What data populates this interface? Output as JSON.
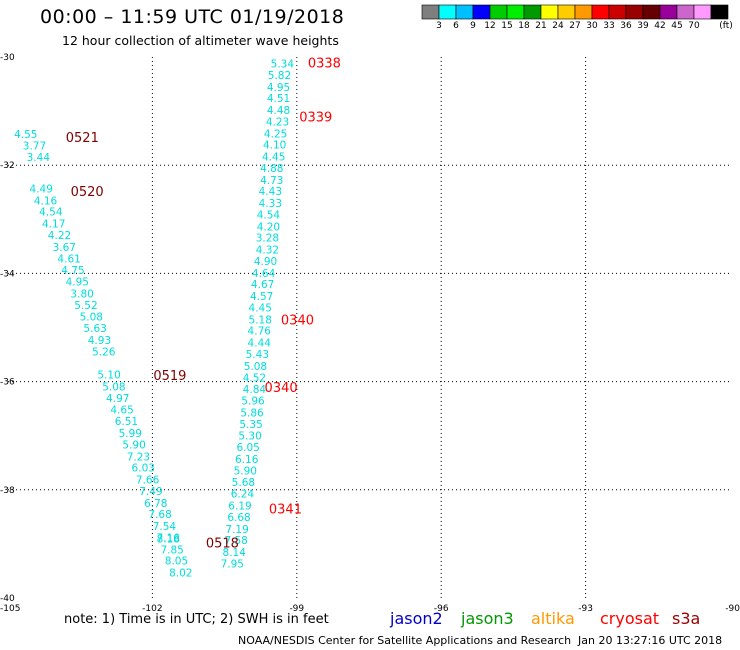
{
  "header": {
    "title": "00:00 – 11:59 UTC 01/19/2018",
    "subtitle": "12 hour collection of altimeter wave heights"
  },
  "colorbar": {
    "colors": [
      "#7f7f7f",
      "#00ffff",
      "#00bfff",
      "#0000ff",
      "#00cc00",
      "#00ee00",
      "#009900",
      "#ffff00",
      "#ffcc00",
      "#ff9900",
      "#ff0000",
      "#cc0000",
      "#990000",
      "#660000",
      "#990099",
      "#cc66cc",
      "#ff99ff",
      "#000000"
    ],
    "labels": [
      "3",
      "6",
      "9",
      "12",
      "15",
      "18",
      "21",
      "24",
      "27",
      "30",
      "33",
      "36",
      "39",
      "42",
      "45",
      "70"
    ],
    "unit": "(ft)"
  },
  "footer": {
    "note": "note:  1) Time is in UTC;  2) SWH is in feet",
    "satellites": [
      {
        "name": "jason2",
        "color": "#0000cc"
      },
      {
        "name": "jason3",
        "color": "#009900"
      },
      {
        "name": "altika",
        "color": "#ff9900"
      },
      {
        "name": "cryosat",
        "color": "#ff0000"
      },
      {
        "name": "s3a",
        "color": "#990000"
      }
    ],
    "credit": "NOAA/NESDIS Center for Satellite Applications and Research",
    "timestamp": "Jan 20 13:27:16 UTC 2018"
  },
  "chart_data": {
    "type": "scatter",
    "xlim": [
      -105,
      -90
    ],
    "ylim": [
      -40,
      -30
    ],
    "x_ticks": [
      "-105",
      "-102",
      "-99",
      "-96",
      "-93",
      "-90"
    ],
    "y_ticks": [
      "-30",
      "-32",
      "-34",
      "-36",
      "-38",
      "-40"
    ],
    "grid": true,
    "value_color": "#00dddd",
    "tracks": [
      {
        "name": "track-west",
        "points": [
          {
            "x": -104.63,
            "y": -31.42,
            "v": "4.55"
          },
          {
            "x": -104.45,
            "y": -31.64,
            "v": "3.77"
          },
          {
            "x": -104.37,
            "y": -31.85,
            "v": "3.44"
          },
          {
            "x": -104.31,
            "y": -32.43,
            "v": "4.49"
          },
          {
            "x": -104.22,
            "y": -32.65,
            "v": "4.16"
          },
          {
            "x": -104.11,
            "y": -32.86,
            "v": "4.54"
          },
          {
            "x": -104.05,
            "y": -33.08,
            "v": "4.17"
          },
          {
            "x": -103.93,
            "y": -33.29,
            "v": "4.22"
          },
          {
            "x": -103.83,
            "y": -33.51,
            "v": "3.67"
          },
          {
            "x": -103.73,
            "y": -33.72,
            "v": "4.61"
          },
          {
            "x": -103.65,
            "y": -33.94,
            "v": "4.75"
          },
          {
            "x": -103.56,
            "y": -34.15,
            "v": "4.95"
          },
          {
            "x": -103.46,
            "y": -34.37,
            "v": "3.80"
          },
          {
            "x": -103.38,
            "y": -34.58,
            "v": "5.52"
          },
          {
            "x": -103.27,
            "y": -34.8,
            "v": "5.08"
          },
          {
            "x": -103.19,
            "y": -35.01,
            "v": "5.63"
          },
          {
            "x": -103.1,
            "y": -35.23,
            "v": "4.93"
          },
          {
            "x": -103.01,
            "y": -35.44,
            "v": "5.26"
          },
          {
            "x": -102.9,
            "y": -35.87,
            "v": "5.10"
          },
          {
            "x": -102.8,
            "y": -36.09,
            "v": "5.08"
          },
          {
            "x": -102.72,
            "y": -36.3,
            "v": "4.97"
          },
          {
            "x": -102.63,
            "y": -36.52,
            "v": "4.65"
          },
          {
            "x": -102.54,
            "y": -36.73,
            "v": "6.51"
          },
          {
            "x": -102.46,
            "y": -36.95,
            "v": "5.99"
          },
          {
            "x": -102.38,
            "y": -37.16,
            "v": "5.90"
          },
          {
            "x": -102.29,
            "y": -37.38,
            "v": "7.23"
          },
          {
            "x": -102.19,
            "y": -37.59,
            "v": "6.03"
          },
          {
            "x": -102.1,
            "y": -37.81,
            "v": "7.66"
          },
          {
            "x": -102.03,
            "y": -38.02,
            "v": "7.49"
          },
          {
            "x": -101.93,
            "y": -38.24,
            "v": "6.78"
          },
          {
            "x": -101.84,
            "y": -38.45,
            "v": "7.68"
          },
          {
            "x": -101.75,
            "y": -38.67,
            "v": "7.54"
          },
          {
            "x": -101.67,
            "y": -38.88,
            "v": "7.16"
          },
          {
            "x": -101.67,
            "y": -38.9,
            "v": "8.18"
          },
          {
            "x": -101.59,
            "y": -39.1,
            "v": "7.85"
          },
          {
            "x": -101.5,
            "y": -39.31,
            "v": "8.05"
          },
          {
            "x": -101.41,
            "y": -39.53,
            "v": "8.02"
          }
        ]
      },
      {
        "name": "track-east",
        "points": [
          {
            "x": -99.3,
            "y": -30.12,
            "v": "5.34"
          },
          {
            "x": -99.36,
            "y": -30.33,
            "v": "5.82"
          },
          {
            "x": -99.38,
            "y": -30.55,
            "v": "4.95"
          },
          {
            "x": -99.38,
            "y": -30.76,
            "v": "4.51"
          },
          {
            "x": -99.38,
            "y": -30.98,
            "v": "4.48"
          },
          {
            "x": -99.4,
            "y": -31.19,
            "v": "4.23"
          },
          {
            "x": -99.44,
            "y": -31.41,
            "v": "4.25"
          },
          {
            "x": -99.46,
            "y": -31.62,
            "v": "4.10"
          },
          {
            "x": -99.48,
            "y": -31.84,
            "v": "4.45"
          },
          {
            "x": -99.52,
            "y": -32.05,
            "v": "4.88"
          },
          {
            "x": -99.52,
            "y": -32.27,
            "v": "4.73"
          },
          {
            "x": -99.55,
            "y": -32.48,
            "v": "4.43"
          },
          {
            "x": -99.55,
            "y": -32.7,
            "v": "4.33"
          },
          {
            "x": -99.59,
            "y": -32.91,
            "v": "4.54"
          },
          {
            "x": -99.59,
            "y": -33.13,
            "v": "4.20"
          },
          {
            "x": -99.61,
            "y": -33.34,
            "v": "3.28"
          },
          {
            "x": -99.61,
            "y": -33.56,
            "v": "4.32"
          },
          {
            "x": -99.65,
            "y": -33.77,
            "v": "4.90"
          },
          {
            "x": -99.69,
            "y": -33.99,
            "v": "4.64"
          },
          {
            "x": -99.71,
            "y": -34.2,
            "v": "4.67"
          },
          {
            "x": -99.73,
            "y": -34.42,
            "v": "4.57"
          },
          {
            "x": -99.76,
            "y": -34.63,
            "v": "4.45"
          },
          {
            "x": -99.76,
            "y": -34.85,
            "v": "5.18"
          },
          {
            "x": -99.78,
            "y": -35.06,
            "v": "4.76"
          },
          {
            "x": -99.78,
            "y": -35.28,
            "v": "4.44"
          },
          {
            "x": -99.82,
            "y": -35.49,
            "v": "5.43"
          },
          {
            "x": -99.86,
            "y": -35.71,
            "v": "5.08"
          },
          {
            "x": -99.88,
            "y": -35.92,
            "v": "4.52"
          },
          {
            "x": -99.88,
            "y": -36.14,
            "v": "4.84"
          },
          {
            "x": -99.91,
            "y": -36.35,
            "v": "5.96"
          },
          {
            "x": -99.93,
            "y": -36.57,
            "v": "5.86"
          },
          {
            "x": -99.95,
            "y": -36.78,
            "v": "5.35"
          },
          {
            "x": -99.97,
            "y": -37.0,
            "v": "5.30"
          },
          {
            "x": -100.01,
            "y": -37.21,
            "v": "6.05"
          },
          {
            "x": -100.04,
            "y": -37.43,
            "v": "6.16"
          },
          {
            "x": -100.07,
            "y": -37.64,
            "v": "5.90"
          },
          {
            "x": -100.11,
            "y": -37.86,
            "v": "5.68"
          },
          {
            "x": -100.13,
            "y": -38.07,
            "v": "6.24"
          },
          {
            "x": -100.18,
            "y": -38.29,
            "v": "6.19"
          },
          {
            "x": -100.2,
            "y": -38.5,
            "v": "6.68"
          },
          {
            "x": -100.24,
            "y": -38.72,
            "v": "7.19"
          },
          {
            "x": -100.26,
            "y": -38.93,
            "v": "7.58"
          },
          {
            "x": -100.3,
            "y": -39.15,
            "v": "8.14"
          },
          {
            "x": -100.34,
            "y": -39.36,
            "v": "7.95"
          }
        ]
      }
    ],
    "time_labels": [
      {
        "x": -98.77,
        "y": -30.1,
        "label": "0338",
        "color": "#ff0000"
      },
      {
        "x": -98.95,
        "y": -31.1,
        "label": "0339",
        "color": "#ff0000"
      },
      {
        "x": -99.33,
        "y": -34.85,
        "label": "0340",
        "color": "#ff0000"
      },
      {
        "x": -99.67,
        "y": -36.1,
        "label": "0340",
        "color": "#ff0000"
      },
      {
        "x": -99.58,
        "y": -38.35,
        "label": "0341",
        "color": "#ff0000"
      },
      {
        "x": -103.8,
        "y": -31.48,
        "label": "0521",
        "color": "#800000"
      },
      {
        "x": -103.7,
        "y": -32.48,
        "label": "0520",
        "color": "#800000"
      },
      {
        "x": -101.98,
        "y": -35.88,
        "label": "0519",
        "color": "#800000"
      },
      {
        "x": -100.89,
        "y": -38.97,
        "label": "0518",
        "color": "#800000"
      }
    ]
  }
}
